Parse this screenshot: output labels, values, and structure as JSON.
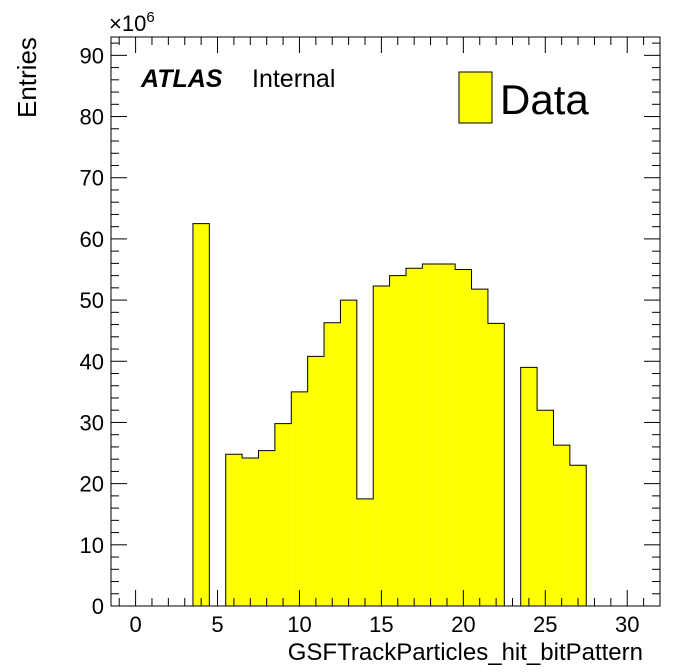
{
  "chart_data": {
    "type": "bar",
    "style": "histogram",
    "xlabel": "GSFTrackParticles_hit_bitPattern",
    "ylabel": "Entries",
    "y_multiplier": "×10",
    "y_multiplier_exp": "6",
    "xlim": [
      -1.5,
      32
    ],
    "ylim": [
      0,
      93
    ],
    "x_ticks": [
      0,
      5,
      10,
      15,
      20,
      25,
      30
    ],
    "y_ticks": [
      0,
      10,
      20,
      30,
      40,
      50,
      60,
      70,
      80,
      90
    ],
    "bin_width": 1,
    "bins": [
      {
        "x": 4,
        "y": 62.5
      },
      {
        "x": 6,
        "y": 24.8
      },
      {
        "x": 7,
        "y": 24.2
      },
      {
        "x": 8,
        "y": 25.4
      },
      {
        "x": 9,
        "y": 29.8
      },
      {
        "x": 10,
        "y": 35.0
      },
      {
        "x": 11,
        "y": 40.8
      },
      {
        "x": 12,
        "y": 46.3
      },
      {
        "x": 13,
        "y": 50.0
      },
      {
        "x": 14,
        "y": 17.5
      },
      {
        "x": 15,
        "y": 52.3
      },
      {
        "x": 16,
        "y": 54.0
      },
      {
        "x": 17,
        "y": 55.2
      },
      {
        "x": 18,
        "y": 55.9
      },
      {
        "x": 19,
        "y": 55.9
      },
      {
        "x": 20,
        "y": 55.0
      },
      {
        "x": 21,
        "y": 51.8
      },
      {
        "x": 22,
        "y": 46.2
      },
      {
        "x": 24,
        "y": 39.0
      },
      {
        "x": 25,
        "y": 32.0
      },
      {
        "x": 26,
        "y": 26.3
      },
      {
        "x": 27,
        "y": 23.0
      }
    ],
    "fill_color": "#ffff00",
    "edge_color": "#000000",
    "legend": {
      "label": "Data",
      "placement": "top-right"
    },
    "annotation": {
      "bold": "ATLAS",
      "text": "Internal"
    },
    "grid": false
  }
}
